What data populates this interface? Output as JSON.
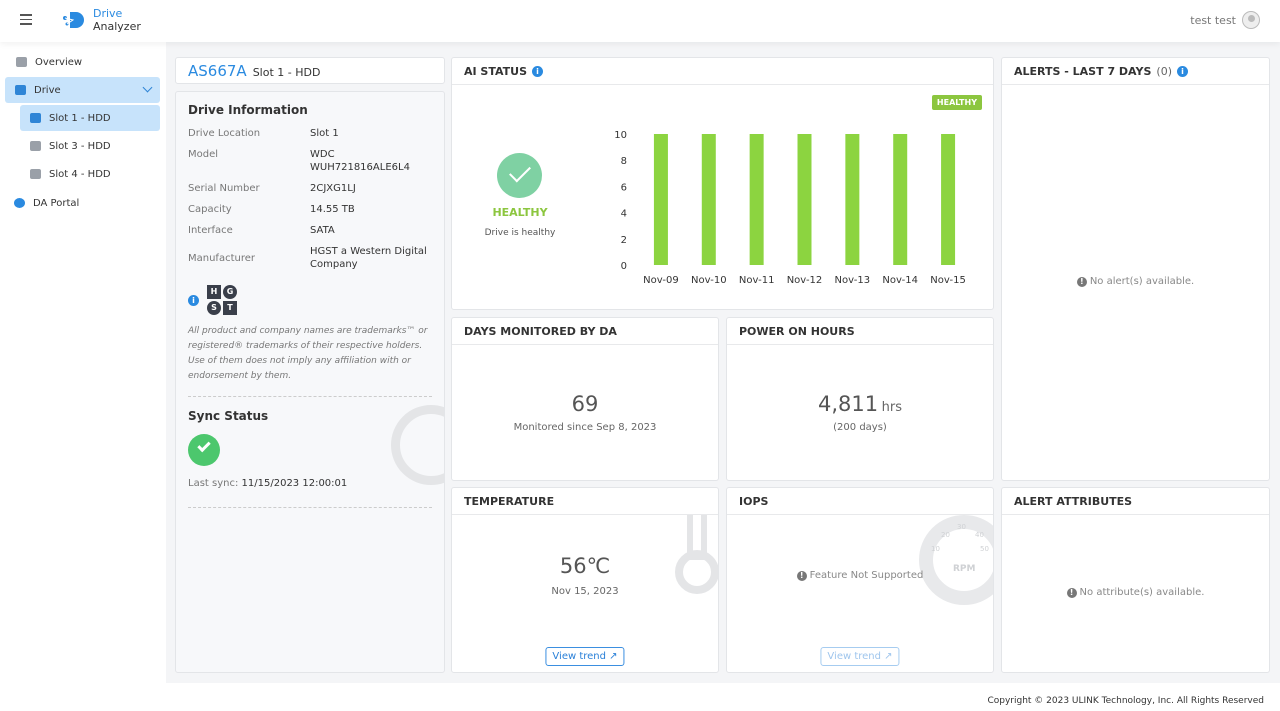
{
  "header": {
    "brand_line1": "Drive",
    "brand_line2": "Analyzer",
    "user": "test test"
  },
  "sidebar": {
    "items": [
      {
        "label": "Overview"
      },
      {
        "label": "Drive"
      },
      {
        "label": "Slot 1 - HDD"
      },
      {
        "label": "Slot 3 - HDD"
      },
      {
        "label": "Slot 4 - HDD"
      },
      {
        "label": "DA Portal"
      }
    ]
  },
  "drive": {
    "id": "AS667A",
    "slot": "Slot 1 - HDD",
    "info_title": "Drive Information",
    "fields": [
      {
        "k": "Drive Location",
        "v": "Slot 1"
      },
      {
        "k": "Model",
        "v": "WDC WUH721816ALE6L4"
      },
      {
        "k": "Serial Number",
        "v": "2CJXG1LJ"
      },
      {
        "k": "Capacity",
        "v": "14.55 TB"
      },
      {
        "k": "Interface",
        "v": "SATA"
      },
      {
        "k": "Manufacturer",
        "v": "HGST a Western Digital Company"
      }
    ],
    "logo_letters": [
      "H",
      "G",
      "S",
      "T"
    ],
    "disclaimer": "All product and company names are trademarks™ or registered® trademarks of their respective holders. Use of them does not imply any affiliation with or endorsement by them.",
    "sync_title": "Sync Status",
    "sync_label": "Last sync:",
    "sync_value": "11/15/2023 12:00:01"
  },
  "ai_status": {
    "title": "AI STATUS",
    "badge": "HEALTHY",
    "status": "HEALTHY",
    "status_text": "Drive is healthy",
    "colors": {
      "healthy": "#8cc63f",
      "check": "#7fd1a3"
    }
  },
  "chart_data": {
    "type": "bar",
    "categories": [
      "Nov-09",
      "Nov-10",
      "Nov-11",
      "Nov-12",
      "Nov-13",
      "Nov-14",
      "Nov-15"
    ],
    "values": [
      10,
      10,
      10,
      10,
      10,
      10,
      10
    ],
    "ylim": [
      0,
      10
    ],
    "yticks": [
      "0",
      "2",
      "4",
      "6",
      "8",
      "10"
    ],
    "color": "#8cd440",
    "grid": false
  },
  "alerts": {
    "title": "ALERTS - LAST 7 DAYS",
    "count": "(0)",
    "empty": "No alert(s) available."
  },
  "days": {
    "title": "DAYS MONITORED BY DA",
    "value": "69",
    "sub": "Monitored since Sep 8, 2023"
  },
  "power": {
    "title": "POWER ON HOURS",
    "value": "4,811",
    "unit": "hrs",
    "sub": "(200 days)"
  },
  "temp": {
    "title": "TEMPERATURE",
    "value": "56℃",
    "sub": "Nov 15, 2023",
    "button": "View trend"
  },
  "iops": {
    "title": "IOPS",
    "message": "Feature Not Supported",
    "button": "View trend",
    "gauge": [
      "10",
      "20",
      "30",
      "40",
      "50",
      "RPM"
    ]
  },
  "alert_attrs": {
    "title": "ALERT ATTRIBUTES",
    "empty": "No attribute(s) available."
  },
  "footer": {
    "copyright": "Copyright © 2023 ULINK Technology, Inc. All Rights Reserved"
  }
}
